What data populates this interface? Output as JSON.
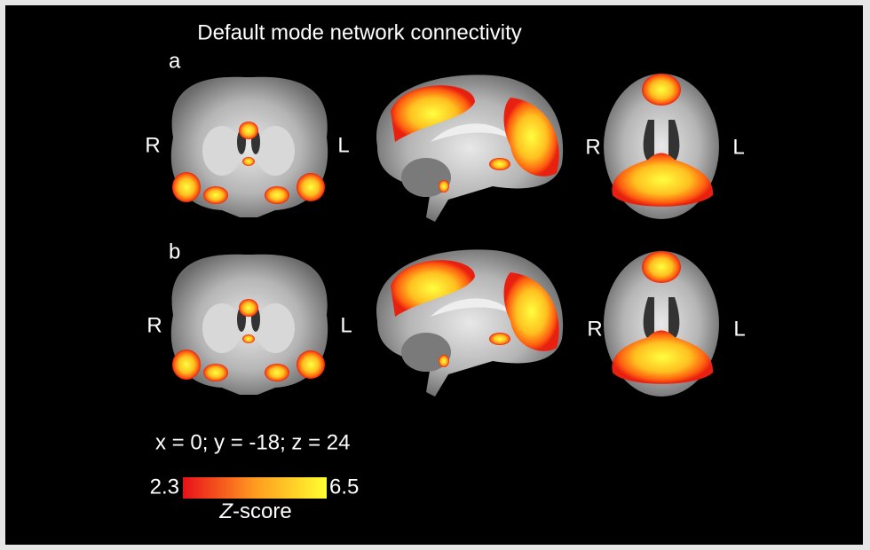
{
  "title": "Default mode network connectivity",
  "panels": [
    {
      "label": "a",
      "coronal": {
        "left": "R",
        "right": "L"
      },
      "axial": {
        "left": "R",
        "right": "L"
      }
    },
    {
      "label": "b",
      "coronal": {
        "left": "R",
        "right": "L"
      },
      "axial": {
        "left": "R",
        "right": "L"
      }
    }
  ],
  "coordinates": "x = 0; y = -18; z = 24",
  "colorbar": {
    "min": 2.3,
    "max": 6.5,
    "label": [
      "Z",
      "-score"
    ]
  }
}
